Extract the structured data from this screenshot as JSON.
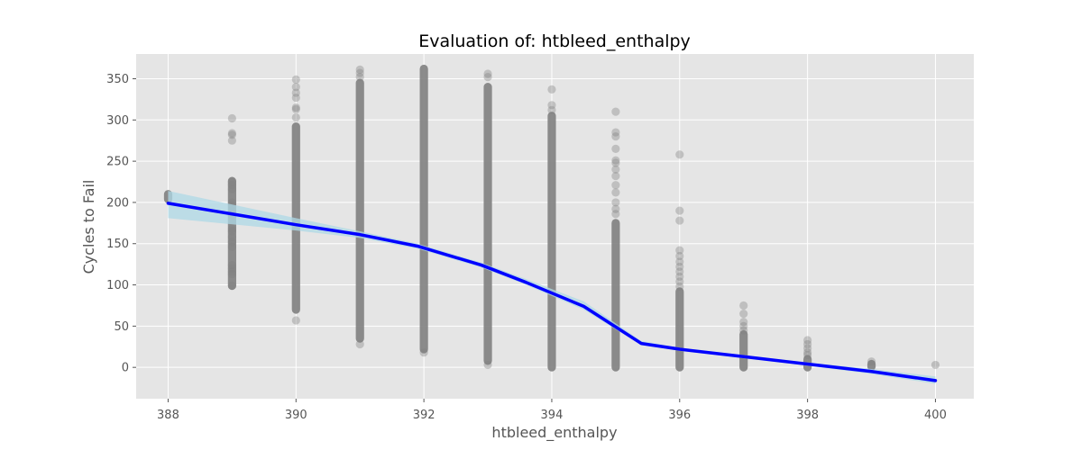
{
  "chart_data": {
    "type": "scatter",
    "title": "Evaluation of: htbleed_enthalpy",
    "xlabel": "htbleed_enthalpy",
    "ylabel": "Cycles to Fail",
    "xlim": [
      387.5,
      400.6
    ],
    "ylim": [
      -38,
      380
    ],
    "x_ticks": [
      388,
      390,
      392,
      394,
      396,
      398,
      400
    ],
    "y_ticks": [
      0,
      50,
      100,
      150,
      200,
      250,
      300,
      350
    ],
    "grid": true,
    "legend": "none",
    "colors": {
      "background": "#e5e5e5",
      "grid": "#ffffff",
      "points": "#808080",
      "fit_line": "#0000ff",
      "confidence_band": "#add8e6"
    },
    "scatter_columns": [
      {
        "x": 388,
        "min": 204,
        "max": 210,
        "outliers": []
      },
      {
        "x": 389,
        "min": 99,
        "max": 226,
        "outliers": [
          302,
          284,
          282,
          275,
          225,
          221,
          216,
          200,
          196,
          190,
          185,
          168,
          165,
          158,
          152,
          146,
          124,
          120,
          116,
          113,
          99
        ]
      },
      {
        "x": 390,
        "min": 70,
        "max": 292,
        "outliers": [
          349,
          340,
          333,
          327,
          315,
          313,
          303,
          57
        ]
      },
      {
        "x": 391,
        "min": 35,
        "max": 345,
        "outliers": [
          361,
          357,
          352,
          28
        ]
      },
      {
        "x": 392,
        "min": 22,
        "max": 362,
        "outliers": [
          18
        ]
      },
      {
        "x": 393,
        "min": 8,
        "max": 340,
        "outliers": [
          356,
          352,
          3
        ]
      },
      {
        "x": 394,
        "min": 0,
        "max": 305,
        "outliers": [
          337,
          318,
          312
        ]
      },
      {
        "x": 395,
        "min": 0,
        "max": 175,
        "outliers": [
          310,
          285,
          280,
          265,
          251,
          248,
          240,
          232,
          221,
          212,
          200,
          192,
          186
        ]
      },
      {
        "x": 396,
        "min": 0,
        "max": 92,
        "outliers": [
          258,
          190,
          178,
          142,
          135,
          128,
          122,
          116,
          110,
          104,
          98
        ]
      },
      {
        "x": 397,
        "min": 0,
        "max": 40,
        "outliers": [
          75,
          65,
          55,
          50,
          45
        ]
      },
      {
        "x": 398,
        "min": 0,
        "max": 10,
        "outliers": [
          33,
          28,
          23,
          18,
          15
        ]
      },
      {
        "x": 399,
        "min": 1,
        "max": 4,
        "outliers": [
          7
        ]
      },
      {
        "x": 400,
        "min": 3,
        "max": 3,
        "outliers": []
      }
    ],
    "fit_line": {
      "x": [
        388,
        390,
        391,
        391.9,
        392.9,
        393.6,
        394.5,
        395.4,
        396,
        397,
        398,
        399,
        400
      ],
      "y": [
        199,
        173,
        161,
        147,
        124,
        103,
        74,
        29,
        22,
        13,
        4,
        -5,
        -16
      ]
    },
    "confidence_band": {
      "x": [
        388,
        390,
        391,
        391.9,
        392.9,
        393.6,
        394.5,
        395.4,
        396,
        397,
        398,
        399,
        400
      ],
      "lower": [
        181,
        166,
        157,
        144,
        121,
        100,
        70,
        27,
        20,
        11,
        2,
        -8,
        -20
      ],
      "upper": [
        214,
        181,
        165,
        150,
        127,
        107,
        80,
        32,
        24,
        15,
        6,
        -2,
        -11
      ]
    }
  }
}
